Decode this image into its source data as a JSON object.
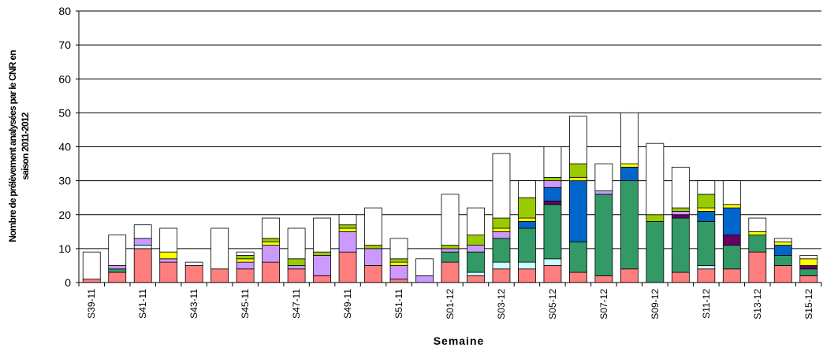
{
  "chart_data": {
    "type": "stacked_bar",
    "x_label": "Semaine",
    "y_label": [
      "Nombre de prélèvement analysées par le CNR en",
      "saison 2011-2012"
    ],
    "categories": [
      "S39-11",
      null,
      "S41-11",
      null,
      "S43-11",
      null,
      "S45-11",
      null,
      "S47-11",
      null,
      "S49-11",
      null,
      "S51-11",
      null,
      "S01-12",
      null,
      "S03-12",
      null,
      "S05-12",
      null,
      "S07-12",
      null,
      "S09-12",
      null,
      "S11-12",
      null,
      "S13-12",
      null,
      "S15-12"
    ],
    "series": [
      {
        "color": "#ff7f7f",
        "values": [
          1,
          3,
          10,
          6,
          5,
          4,
          4,
          6,
          4,
          2,
          9,
          5,
          1,
          0,
          6,
          2,
          4,
          4,
          5,
          3,
          2,
          4,
          0,
          3,
          4,
          4,
          9,
          5,
          2
        ]
      },
      {
        "color": "#ccffff",
        "values": [
          0,
          0,
          1,
          0,
          0,
          0,
          0,
          0,
          0,
          0,
          0,
          0,
          0,
          0,
          0,
          1,
          2,
          2,
          2,
          0,
          0,
          0,
          0,
          0,
          1,
          0,
          0,
          0,
          0
        ]
      },
      {
        "color": "#339966",
        "values": [
          0,
          1,
          0,
          0,
          0,
          0,
          0,
          0,
          0,
          0,
          0,
          0,
          0,
          0,
          3,
          6,
          7,
          10,
          16,
          9,
          24,
          26,
          18,
          16,
          13,
          7,
          5,
          3,
          2
        ]
      },
      {
        "color": "#660066",
        "values": [
          0,
          0,
          0,
          0,
          0,
          0,
          0,
          0,
          0,
          0,
          0,
          0,
          0,
          0,
          0,
          0,
          0,
          0,
          1,
          0,
          0,
          0,
          0,
          1,
          0,
          3,
          0,
          0,
          1
        ]
      },
      {
        "color": "#0066cc",
        "values": [
          0,
          0,
          0,
          0,
          0,
          0,
          0,
          0,
          0,
          0,
          0,
          0,
          0,
          0,
          0,
          0,
          0,
          2,
          4,
          18,
          0,
          4,
          0,
          0,
          3,
          8,
          0,
          3,
          0
        ]
      },
      {
        "color": "#cc99ff",
        "values": [
          0,
          1,
          2,
          1,
          0,
          0,
          2,
          5,
          1,
          6,
          6,
          5,
          4,
          2,
          1,
          2,
          2,
          0,
          2,
          0,
          1,
          0,
          0,
          1,
          0,
          0,
          0,
          0,
          0
        ]
      },
      {
        "color": "#ffff00",
        "values": [
          0,
          0,
          0,
          2,
          0,
          0,
          1,
          1,
          0,
          0,
          1,
          0,
          1,
          0,
          0,
          0,
          1,
          1,
          0,
          1,
          0,
          1,
          0,
          0,
          1,
          1,
          1,
          1,
          2
        ]
      },
      {
        "color": "#99cc00",
        "values": [
          0,
          0,
          0,
          0,
          0,
          0,
          1,
          1,
          2,
          1,
          1,
          1,
          1,
          0,
          1,
          3,
          3,
          6,
          1,
          4,
          0,
          0,
          2,
          1,
          4,
          0,
          0,
          0,
          0
        ]
      },
      {
        "color": "#ffffff",
        "values": [
          8,
          9,
          4,
          7,
          1,
          12,
          1,
          6,
          9,
          10,
          3,
          11,
          6,
          5,
          15,
          8,
          19,
          5,
          9,
          14,
          8,
          15,
          21,
          12,
          4,
          7,
          4,
          1,
          1
        ]
      }
    ],
    "ylim": [
      0,
      80
    ],
    "yticks": [
      0,
      10,
      20,
      30,
      40,
      50,
      60,
      70,
      80
    ],
    "grid": true
  }
}
